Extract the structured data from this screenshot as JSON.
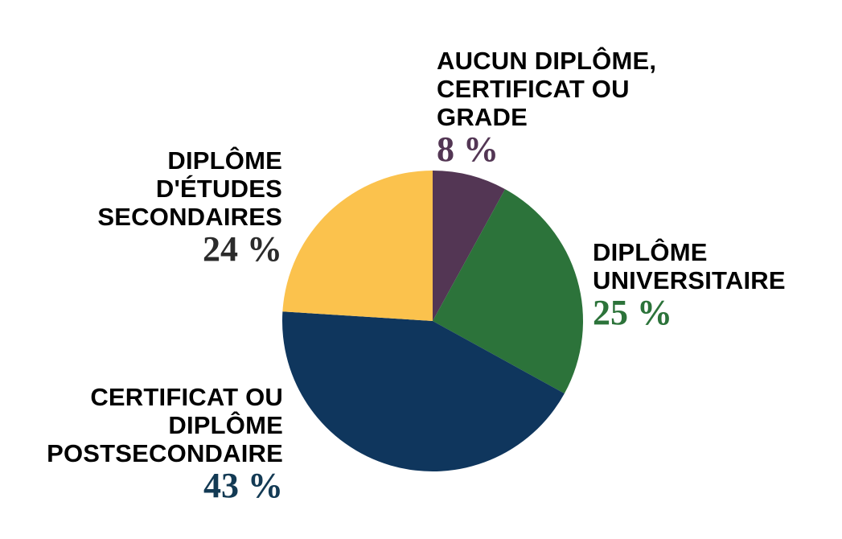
{
  "chart_data": {
    "type": "pie",
    "start_angle_deg": 0,
    "direction": "clockwise",
    "slices": [
      {
        "label": "AUCUN DIPLÔME,\nCERTIFICAT OU\nGRADE",
        "value": 8,
        "value_text": "8 %",
        "color": "#533654",
        "value_color": "#533654"
      },
      {
        "label": "DIPLÔME\nUNIVERSITAIRE",
        "value": 25,
        "value_text": "25 %",
        "color": "#2c733a",
        "value_color": "#2c733a"
      },
      {
        "label": "CERTIFICAT OU\nDIPLÔME\nPOSTSECONDAIRE",
        "value": 43,
        "value_text": "43 %",
        "color": "#0f365d",
        "value_color": "#133a54"
      },
      {
        "label": "DIPLÔME\nD'ÉTUDES\nSECONDAIRES",
        "value": 24,
        "value_text": "24 %",
        "color": "#fbc24d",
        "value_color": "#2b2b2b"
      }
    ]
  }
}
